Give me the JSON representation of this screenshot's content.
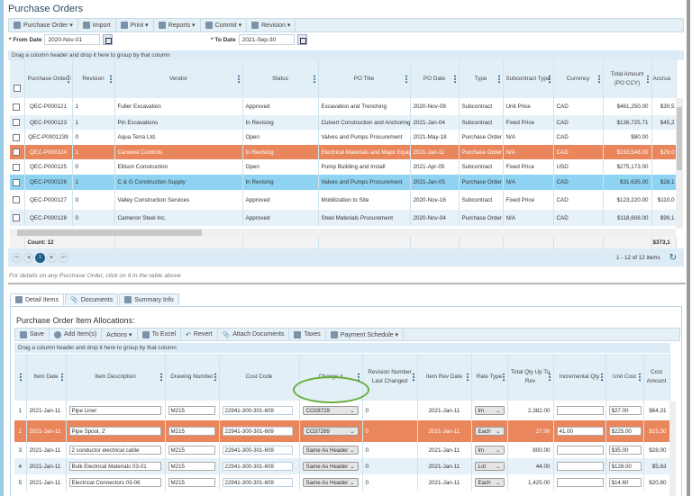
{
  "title": "Purchase Orders",
  "toolbar": [
    {
      "label": "Purchase Order ▾",
      "icon": "purchase-order-icon"
    },
    {
      "label": "Import",
      "icon": "import-icon"
    },
    {
      "label": "Print ▾",
      "icon": "print-icon"
    },
    {
      "label": "Reports ▾",
      "icon": "reports-icon"
    },
    {
      "label": "Commit ▾",
      "icon": "commit-icon"
    },
    {
      "label": "Revision ▾",
      "icon": "revision-icon"
    }
  ],
  "filters": {
    "from_label": "* From Date",
    "from_value": "2020-Nov-01",
    "to_label": "* To Date",
    "to_value": "2021-Sep-30"
  },
  "group_hint": "Drag a column header and drop it here to group by that column",
  "po_grid": {
    "headers": [
      "Purchase Order",
      "Revision",
      "Vendor",
      "Status",
      "PO Title",
      "PO Date",
      "Type",
      "Subcontract Type",
      "Currency",
      "Total Amount (PO CCY)",
      "Accrua"
    ],
    "rows": [
      [
        "QEC-P000121",
        "1",
        "Fuller Excavation",
        "Approved",
        "Excavation and Trenching",
        "2020-Nov-09",
        "Subcontract",
        "Unit Price",
        "CAD",
        "$461,250.00",
        "$30,5"
      ],
      [
        "QEC-P000123",
        "1",
        "Pin Excavations",
        "In Revising",
        "Culvert Construction and Anchoring",
        "2021-Jan-04",
        "Subcontract",
        "Fixed Price",
        "CAD",
        "$136,725.71",
        "$45,2"
      ],
      [
        "QEC-P0001239",
        "0",
        "Aqua Terra Ltd.",
        "Open",
        "Valves and Pumps Procurement",
        "2021-May-18",
        "Purchase Order",
        "N/A",
        "CAD",
        "$80.00",
        ""
      ],
      [
        "QEC-P000124",
        "1",
        "Canwest Controls",
        "In Revising",
        "Electrical Materials and Major Equip",
        "2021-Jan-11",
        "Purchase Order",
        "N/A",
        "CAD",
        "$193,548.00",
        "$29,0"
      ],
      [
        "QEC-P000125",
        "0",
        "Ellison Construction",
        "Open",
        "Pump Building and Install",
        "2021-Apr-05",
        "Subcontract",
        "Fixed Price",
        "USD",
        "$275,173.00",
        ""
      ],
      [
        "QEC-P000126",
        "1",
        "C & G Construction Supply",
        "In Revising",
        "Valves and Pumps Procurement",
        "2021-Jan-05",
        "Purchase Order",
        "N/A",
        "CAD",
        "$31,635.00",
        "$28,1"
      ],
      [
        "QEC-P000127",
        "0",
        "Valley Construction Services",
        "Approved",
        "Mobilization to Site",
        "2020-Nov-16",
        "Subcontract",
        "Fixed Price",
        "CAD",
        "$123,220.00",
        "$110,0"
      ],
      [
        "QEC-P000128",
        "0",
        "Cameron Steel Inc.",
        "Approved",
        "Steel Materials Procurement",
        "2020-Nov-04",
        "Purchase Order",
        "N/A",
        "CAD",
        "$118,608.00",
        "$99,1"
      ]
    ],
    "count": "Count: 12",
    "accrual_total": "$373,1",
    "current_page": "1",
    "pager_info": "1 - 12 of 12 items"
  },
  "note": "For details on any Purchase Order, click on it in the table above",
  "tabs": [
    "Detail Items",
    "Documents",
    "Summary Info"
  ],
  "subtitle": "Purchase Order Item Allocations:",
  "item_toolbar": [
    "Save",
    "Add Item(s)",
    "Actions ▾",
    "To Excel",
    "Revert",
    "Attach Documents",
    "Taxes",
    "Payment Schedule ▾"
  ],
  "item_grid": {
    "headers": [
      "Item Date",
      "Item Description",
      "Drawing Number",
      "Cost Code",
      "Change #",
      "Revision Number Last Changed",
      "Item Rev Date",
      "Rate Type",
      "Total Qty Up To Rev",
      "Incremental Qty",
      "Unit Cost",
      "Cost Amount"
    ],
    "rows": [
      [
        "1",
        "2021-Jan-11",
        "Pipe Liner",
        "M215",
        "22941-300-301-609",
        "CO28729",
        "0",
        "2021-Jan-11",
        "lm",
        "2,382.00",
        "",
        "$27.00",
        "$64,31"
      ],
      [
        "2",
        "2021-Jan-11",
        "Pipe Spool, 2'",
        "M215",
        "22941-300-301-609",
        "CO37289",
        "0",
        "2021-Jan-11",
        "Each",
        "27.00",
        "41.00",
        "$225.00",
        "$15,30"
      ],
      [
        "3",
        "2021-Jan-11",
        "2 conductor electrical cable",
        "M215",
        "22941-300-301-609",
        "Same As Header",
        "0",
        "2021-Jan-11",
        "lm",
        "800.00",
        "",
        "$35.00",
        "$28,00"
      ],
      [
        "4",
        "2021-Jan-11",
        "Bulk Electrical Materials 03-01",
        "M215",
        "22941-300-301-609",
        "Same As Header",
        "0",
        "2021-Jan-11",
        "Lot",
        "44.00",
        "",
        "$128.00",
        "$5,63"
      ],
      [
        "5",
        "2021-Jan-11",
        "Electrical Connectors 03-06",
        "M215",
        "22941-300-301-609",
        "Same As Header",
        "0",
        "2021-Jan-11",
        "Each",
        "1,425.00",
        "",
        "$14.60",
        "$20,80"
      ]
    ]
  },
  "colors": {
    "selected_row": "#e9865c",
    "highlight_row": "#8fd3f2",
    "header_bg": "#e3eff7",
    "annotation": "#6aac3a"
  }
}
